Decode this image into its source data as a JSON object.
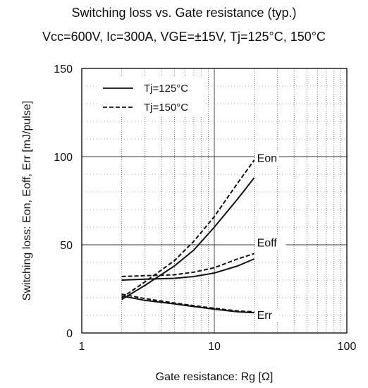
{
  "chart_data": {
    "type": "line",
    "title": "Switching loss  vs.  Gate resistance (typ.)",
    "subtitle": "Vcc=600V, Ic=300A, VGE=±15V, Tj=125°C, 150°C",
    "xlabel": "Gate resistance: Rg [Ω]",
    "ylabel": "Switching loss: Eon, Eoff, Err [mJ/pulse]",
    "xscale": "log",
    "xlim": [
      1,
      100
    ],
    "ylim": [
      0,
      150
    ],
    "xticks": [
      1,
      10,
      100
    ],
    "xtick_labels": [
      "1",
      "10",
      "100"
    ],
    "yticks": [
      0,
      50,
      100,
      150
    ],
    "ytick_labels": [
      "0",
      "50",
      "100",
      "150"
    ],
    "grid": true,
    "legend_position": "top-left",
    "legend": [
      {
        "label": "Tj=125°C",
        "style": "solid"
      },
      {
        "label": "Tj=150°C",
        "style": "dashed"
      }
    ],
    "annotations": [
      {
        "text": "Eon",
        "x": 21,
        "y": 97
      },
      {
        "text": "Eoff",
        "x": 21,
        "y": 49
      },
      {
        "text": "Err",
        "x": 21,
        "y": 8
      }
    ],
    "x": [
      2,
      3,
      5,
      7,
      10,
      15,
      20
    ],
    "series": [
      {
        "name": "Eon",
        "tj": "Tj=125°C",
        "style": "solid",
        "values": [
          19,
          27,
          38,
          47,
          60,
          76,
          88
        ]
      },
      {
        "name": "Eon",
        "tj": "Tj=150°C",
        "style": "dashed",
        "values": [
          20,
          29,
          41,
          52,
          66,
          85,
          98
        ]
      },
      {
        "name": "Eoff",
        "tj": "Tj=125°C",
        "style": "solid",
        "values": [
          30,
          30.5,
          31,
          32,
          34,
          38,
          42
        ]
      },
      {
        "name": "Eoff",
        "tj": "Tj=150°C",
        "style": "dashed",
        "values": [
          32,
          32.5,
          33,
          34.5,
          37,
          42,
          45
        ]
      },
      {
        "name": "Err",
        "tj": "Tj=125°C",
        "style": "solid",
        "values": [
          21,
          18.5,
          16.5,
          15,
          13.5,
          12,
          11.5
        ]
      },
      {
        "name": "Err",
        "tj": "Tj=150°C",
        "style": "dashed",
        "values": [
          22,
          19.5,
          17,
          15.5,
          14,
          12.5,
          12
        ]
      }
    ]
  }
}
